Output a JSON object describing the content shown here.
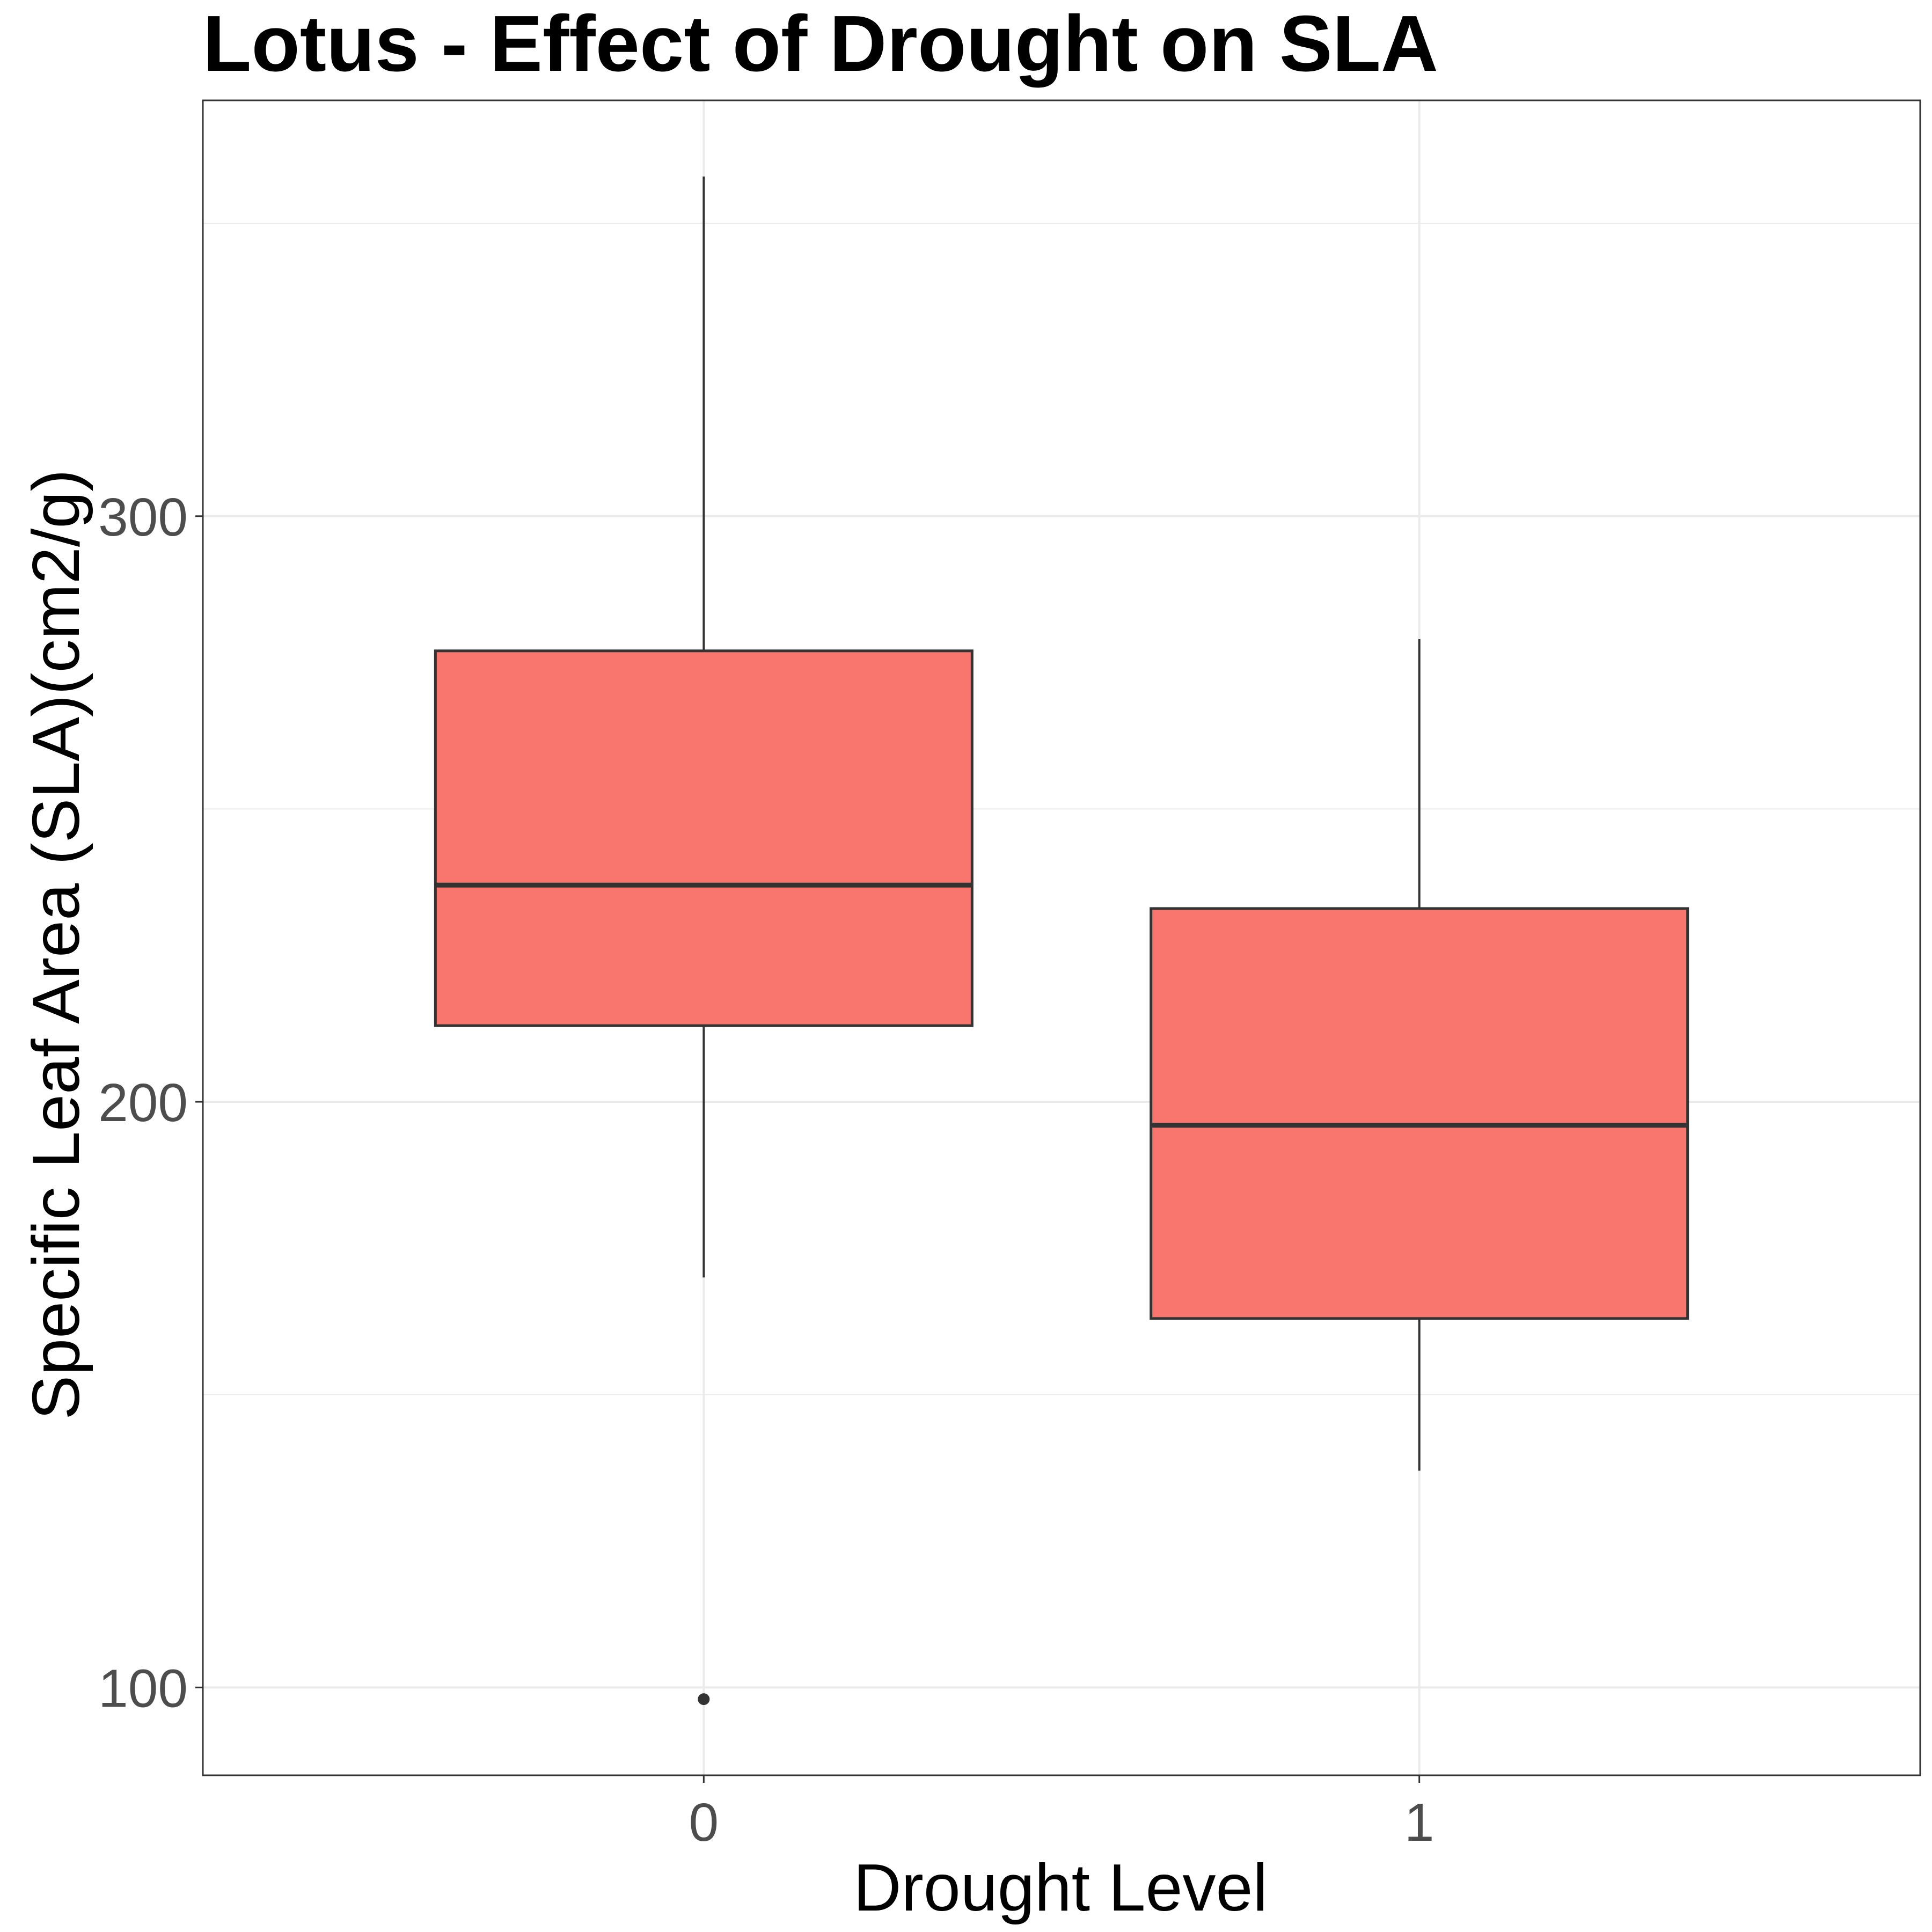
{
  "chart_data": {
    "type": "box",
    "title": "Lotus - Effect of Drought on SLA",
    "xlabel": "Drought Level",
    "ylabel": "Specific Leaf Area (SLA)(cm2/g)",
    "categories": [
      "0",
      "1"
    ],
    "y_ticks": [
      100,
      200,
      300
    ],
    "ylim": [
      85,
      371
    ],
    "grid": true,
    "fill_color": "#F8766D",
    "boxes": [
      {
        "category": "0",
        "whisker_low": 170,
        "q1": 213,
        "median": 237,
        "q3": 277,
        "whisker_high": 358,
        "outliers": [
          98
        ]
      },
      {
        "category": "1",
        "whisker_low": 137,
        "q1": 163,
        "median": 196,
        "q3": 233,
        "whisker_high": 279,
        "outliers": []
      }
    ]
  }
}
